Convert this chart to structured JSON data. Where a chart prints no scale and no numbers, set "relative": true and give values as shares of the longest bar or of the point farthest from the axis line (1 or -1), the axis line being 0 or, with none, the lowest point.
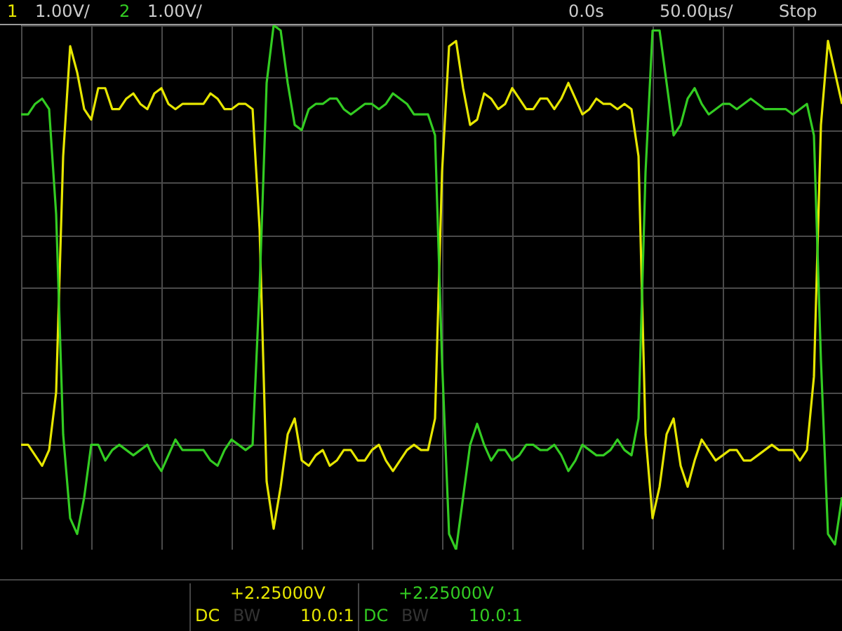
{
  "chart_data": {
    "type": "line",
    "relative": true,
    "grid": true,
    "legend": "top left",
    "categories": [
      null,
      null,
      null,
      null,
      null,
      null,
      null,
      null,
      null,
      null,
      null,
      null,
      null,
      null,
      null,
      null,
      null,
      null,
      null,
      null,
      null,
      null,
      null,
      null,
      null,
      null,
      null,
      null,
      null,
      null,
      null,
      null,
      null,
      null,
      null,
      null,
      null,
      null,
      null,
      null,
      null,
      null,
      null,
      null,
      null,
      null,
      null,
      null,
      null,
      null,
      null,
      null,
      null,
      null,
      null,
      null,
      null,
      null,
      null,
      null,
      null,
      null,
      null,
      null,
      null,
      null,
      null,
      null,
      null,
      null,
      null,
      null,
      null,
      null,
      null,
      null,
      null,
      null,
      null,
      null,
      null,
      null,
      null,
      null,
      null,
      null,
      null,
      null,
      null,
      null,
      null,
      null,
      null,
      null,
      null,
      null,
      null,
      null,
      null,
      null,
      null,
      null,
      null,
      null,
      null,
      null,
      null,
      null,
      null,
      null,
      null,
      null,
      null,
      null,
      null,
      null,
      null,
      null
    ],
    "series": [
      {
        "name": "1",
        "color": "#e6e600",
        "values": [
          0.2,
          0.2,
          0.18,
          0.16,
          0.19,
          0.3,
          0.75,
          0.96,
          0.91,
          0.84,
          0.82,
          0.88,
          0.88,
          0.84,
          0.84,
          0.86,
          0.87,
          0.85,
          0.84,
          0.87,
          0.88,
          0.85,
          0.84,
          0.85,
          0.85,
          0.85,
          0.85,
          0.87,
          0.86,
          0.84,
          0.84,
          0.85,
          0.85,
          0.84,
          0.61,
          0.13,
          0.04,
          0.12,
          0.22,
          0.25,
          0.17,
          0.16,
          0.18,
          0.19,
          0.16,
          0.17,
          0.19,
          0.19,
          0.17,
          0.17,
          0.19,
          0.2,
          0.17,
          0.15,
          0.17,
          0.19,
          0.2,
          0.19,
          0.19,
          0.25,
          0.72,
          0.96,
          0.97,
          0.88,
          0.81,
          0.82,
          0.87,
          0.86,
          0.84,
          0.85,
          0.88,
          0.86,
          0.84,
          0.84,
          0.86,
          0.86,
          0.84,
          0.86,
          0.89,
          0.86,
          0.83,
          0.84,
          0.86,
          0.85,
          0.85,
          0.84,
          0.85,
          0.84,
          0.75,
          0.22,
          0.06,
          0.12,
          0.22,
          0.25,
          0.16,
          0.12,
          0.17,
          0.21,
          0.19,
          0.17,
          0.18,
          0.19,
          0.19,
          0.17,
          0.17,
          0.18,
          0.19,
          0.2,
          0.19,
          0.19,
          0.19,
          0.17,
          0.19,
          0.33,
          0.81,
          0.97,
          0.91,
          0.85
        ]
      },
      {
        "name": "2",
        "color": "#33cc22",
        "values": [
          0.83,
          0.83,
          0.85,
          0.86,
          0.84,
          0.64,
          0.22,
          0.06,
          0.03,
          0.1,
          0.2,
          0.2,
          0.17,
          0.19,
          0.2,
          0.19,
          0.18,
          0.19,
          0.2,
          0.17,
          0.15,
          0.18,
          0.21,
          0.19,
          0.19,
          0.19,
          0.19,
          0.17,
          0.16,
          0.19,
          0.21,
          0.2,
          0.19,
          0.2,
          0.5,
          0.89,
          1.0,
          0.99,
          0.89,
          0.81,
          0.8,
          0.84,
          0.85,
          0.85,
          0.86,
          0.86,
          0.84,
          0.83,
          0.84,
          0.85,
          0.85,
          0.84,
          0.85,
          0.87,
          0.86,
          0.85,
          0.83,
          0.83,
          0.83,
          0.79,
          0.36,
          0.03,
          0,
          0.1,
          0.2,
          0.24,
          0.2,
          0.17,
          0.19,
          0.19,
          0.17,
          0.18,
          0.2,
          0.2,
          0.19,
          0.19,
          0.2,
          0.18,
          0.15,
          0.17,
          0.2,
          0.19,
          0.18,
          0.18,
          0.19,
          0.21,
          0.19,
          0.18,
          0.25,
          0.72,
          0.99,
          0.99,
          0.89,
          0.79,
          0.81,
          0.86,
          0.88,
          0.85,
          0.83,
          0.84,
          0.85,
          0.85,
          0.84,
          0.85,
          0.86,
          0.85,
          0.84,
          0.84,
          0.84,
          0.84,
          0.83,
          0.84,
          0.85,
          0.79,
          0.36,
          0.03,
          0.01,
          0.1
        ]
      }
    ],
    "annotations": [
      "1.00V/",
      "1.00V/",
      "0.0s",
      "50.00µs/",
      "Stop",
      "+2.25000V",
      "DC",
      "BW",
      "10.0:1",
      "+2.25000V",
      "DC",
      "BW",
      "10.0:1"
    ]
  }
}
